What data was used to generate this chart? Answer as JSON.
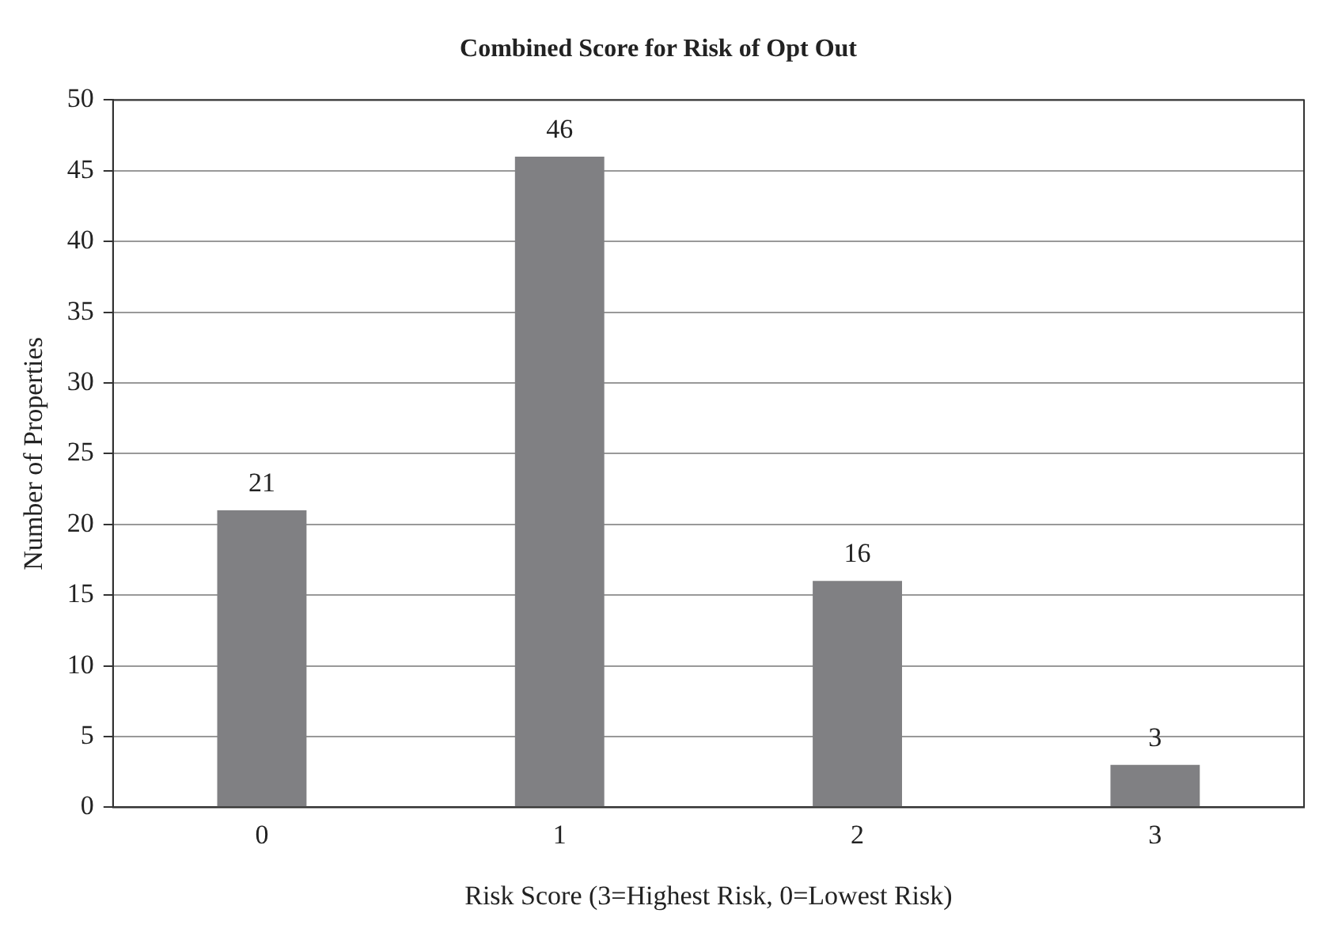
{
  "chart_data": {
    "type": "bar",
    "title": "Combined Score for Risk of Opt Out",
    "xlabel": "Risk Score (3=Highest Risk, 0=Lowest Risk)",
    "ylabel": "Number of Properties",
    "categories": [
      "0",
      "1",
      "2",
      "3"
    ],
    "values": [
      21,
      46,
      16,
      3
    ],
    "color": "#808083",
    "ylim": [
      0,
      50
    ],
    "yticks": [
      0,
      5,
      10,
      15,
      20,
      25,
      30,
      35,
      40,
      45,
      50
    ],
    "grid": "y",
    "data_labels": true,
    "legend": false
  }
}
